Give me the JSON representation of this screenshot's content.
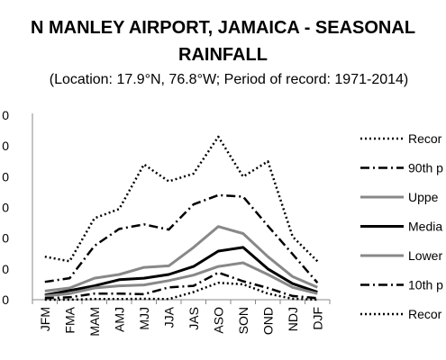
{
  "chart_data": {
    "type": "line",
    "title": "N MANLEY AIRPORT, JAMAICA - SEASONAL RAINFALL",
    "subtitle": "(Location: 17.9°N, 76.8°W; Period of record: 1971-2014)",
    "categories": [
      "JFM",
      "FMA",
      "MAM",
      "AMJ",
      "MJJ",
      "JJA",
      "JAS",
      "ASO",
      "SON",
      "OND",
      "NDJ",
      "DJF"
    ],
    "y_tick_labels": [
      "0",
      "0",
      "0",
      "0",
      "0",
      "0",
      "0"
    ],
    "ylim": [
      0,
      600
    ],
    "grid": false,
    "legend_placement": "right",
    "series": [
      {
        "name": "Recor",
        "style": "dotted",
        "color": "#000000",
        "values": [
          140,
          125,
          265,
          295,
          440,
          385,
          410,
          530,
          400,
          450,
          205,
          125
        ]
      },
      {
        "name": "90th p",
        "style": "dashdot",
        "color": "#000000",
        "values": [
          58,
          70,
          175,
          230,
          245,
          228,
          310,
          340,
          335,
          240,
          148,
          55
        ]
      },
      {
        "name": "Uppe",
        "style": "solid",
        "color": "#888888",
        "values": [
          28,
          38,
          70,
          82,
          105,
          110,
          170,
          238,
          215,
          140,
          75,
          40
        ]
      },
      {
        "name": "Media",
        "style": "solid",
        "color": "#000000",
        "values": [
          15,
          30,
          45,
          65,
          70,
          82,
          108,
          158,
          170,
          100,
          52,
          25
        ]
      },
      {
        "name": "Lower",
        "style": "solid",
        "color": "#888888",
        "values": [
          12,
          20,
          38,
          45,
          48,
          62,
          80,
          108,
          120,
          82,
          40,
          20
        ]
      },
      {
        "name": "10th p",
        "style": "dashdot",
        "color": "#000000",
        "values": [
          5,
          8,
          20,
          20,
          18,
          40,
          45,
          88,
          60,
          38,
          12,
          5
        ]
      },
      {
        "name": "Recor",
        "style": "dotted",
        "color": "#000000",
        "values": [
          0,
          0,
          2,
          2,
          3,
          2,
          25,
          55,
          50,
          20,
          3,
          0
        ]
      }
    ]
  }
}
